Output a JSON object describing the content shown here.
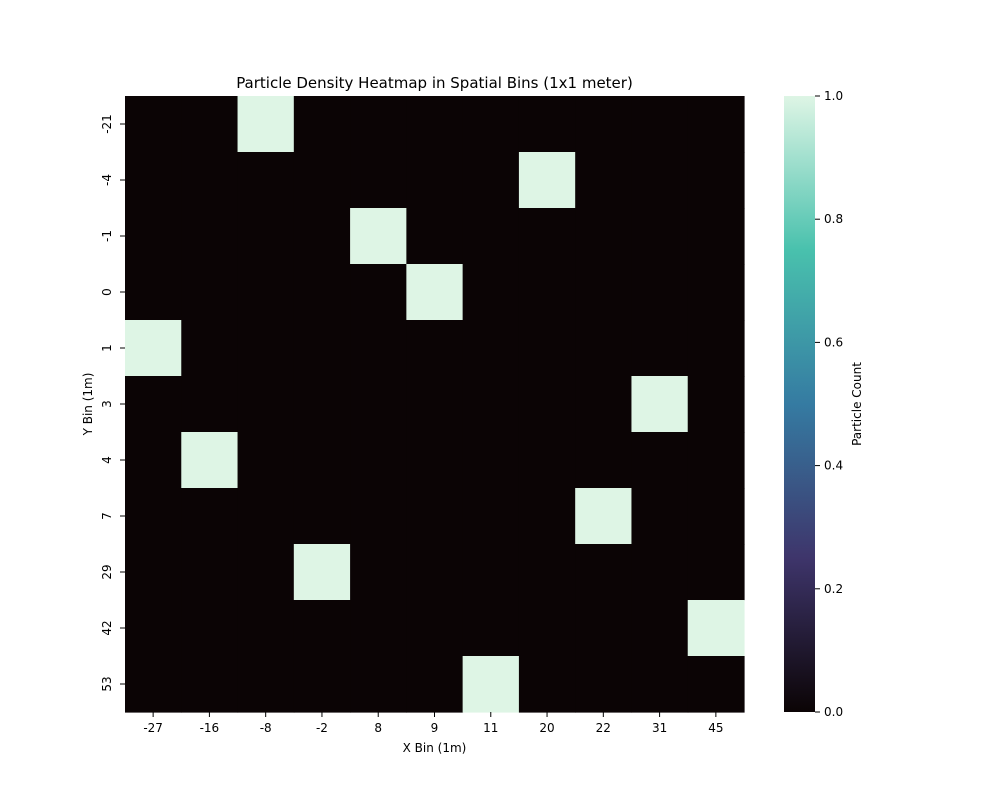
{
  "chart_data": {
    "type": "heatmap",
    "title": "Particle Density Heatmap in Spatial Bins (1x1 meter)",
    "xlabel": "X Bin (1m)",
    "ylabel": "Y Bin (1m)",
    "x_categories": [
      "-27",
      "-16",
      "-8",
      "-2",
      "8",
      "9",
      "11",
      "20",
      "22",
      "31",
      "45"
    ],
    "y_categories": [
      "-21",
      "-4",
      "-1",
      "0",
      "1",
      "3",
      "4",
      "7",
      "29",
      "42",
      "53"
    ],
    "values": [
      [
        0,
        0,
        1,
        0,
        0,
        0,
        0,
        0,
        0,
        0,
        0
      ],
      [
        0,
        0,
        0,
        0,
        0,
        0,
        0,
        1,
        0,
        0,
        0
      ],
      [
        0,
        0,
        0,
        0,
        1,
        0,
        0,
        0,
        0,
        0,
        0
      ],
      [
        0,
        0,
        0,
        0,
        0,
        1,
        0,
        0,
        0,
        0,
        0
      ],
      [
        1,
        0,
        0,
        0,
        0,
        0,
        0,
        0,
        0,
        0,
        0
      ],
      [
        0,
        0,
        0,
        0,
        0,
        0,
        0,
        0,
        0,
        1,
        0
      ],
      [
        0,
        1,
        0,
        0,
        0,
        0,
        0,
        0,
        0,
        0,
        0
      ],
      [
        0,
        0,
        0,
        0,
        0,
        0,
        0,
        0,
        1,
        0,
        0
      ],
      [
        0,
        0,
        0,
        1,
        0,
        0,
        0,
        0,
        0,
        0,
        0
      ],
      [
        0,
        0,
        0,
        0,
        0,
        0,
        0,
        0,
        0,
        0,
        1
      ],
      [
        0,
        0,
        0,
        0,
        0,
        0,
        1,
        0,
        0,
        0,
        0
      ]
    ],
    "colorbar": {
      "label": "Particle Count",
      "range": [
        0.0,
        1.0
      ],
      "ticks": [
        "0.0",
        "0.2",
        "0.4",
        "0.6",
        "0.8",
        "1.0"
      ],
      "colormap": "mako",
      "colors": [
        "#0b0405",
        "#3e356b",
        "#357ba2",
        "#49c1ad",
        "#def5e5"
      ]
    },
    "legend": "none",
    "grid": false
  }
}
